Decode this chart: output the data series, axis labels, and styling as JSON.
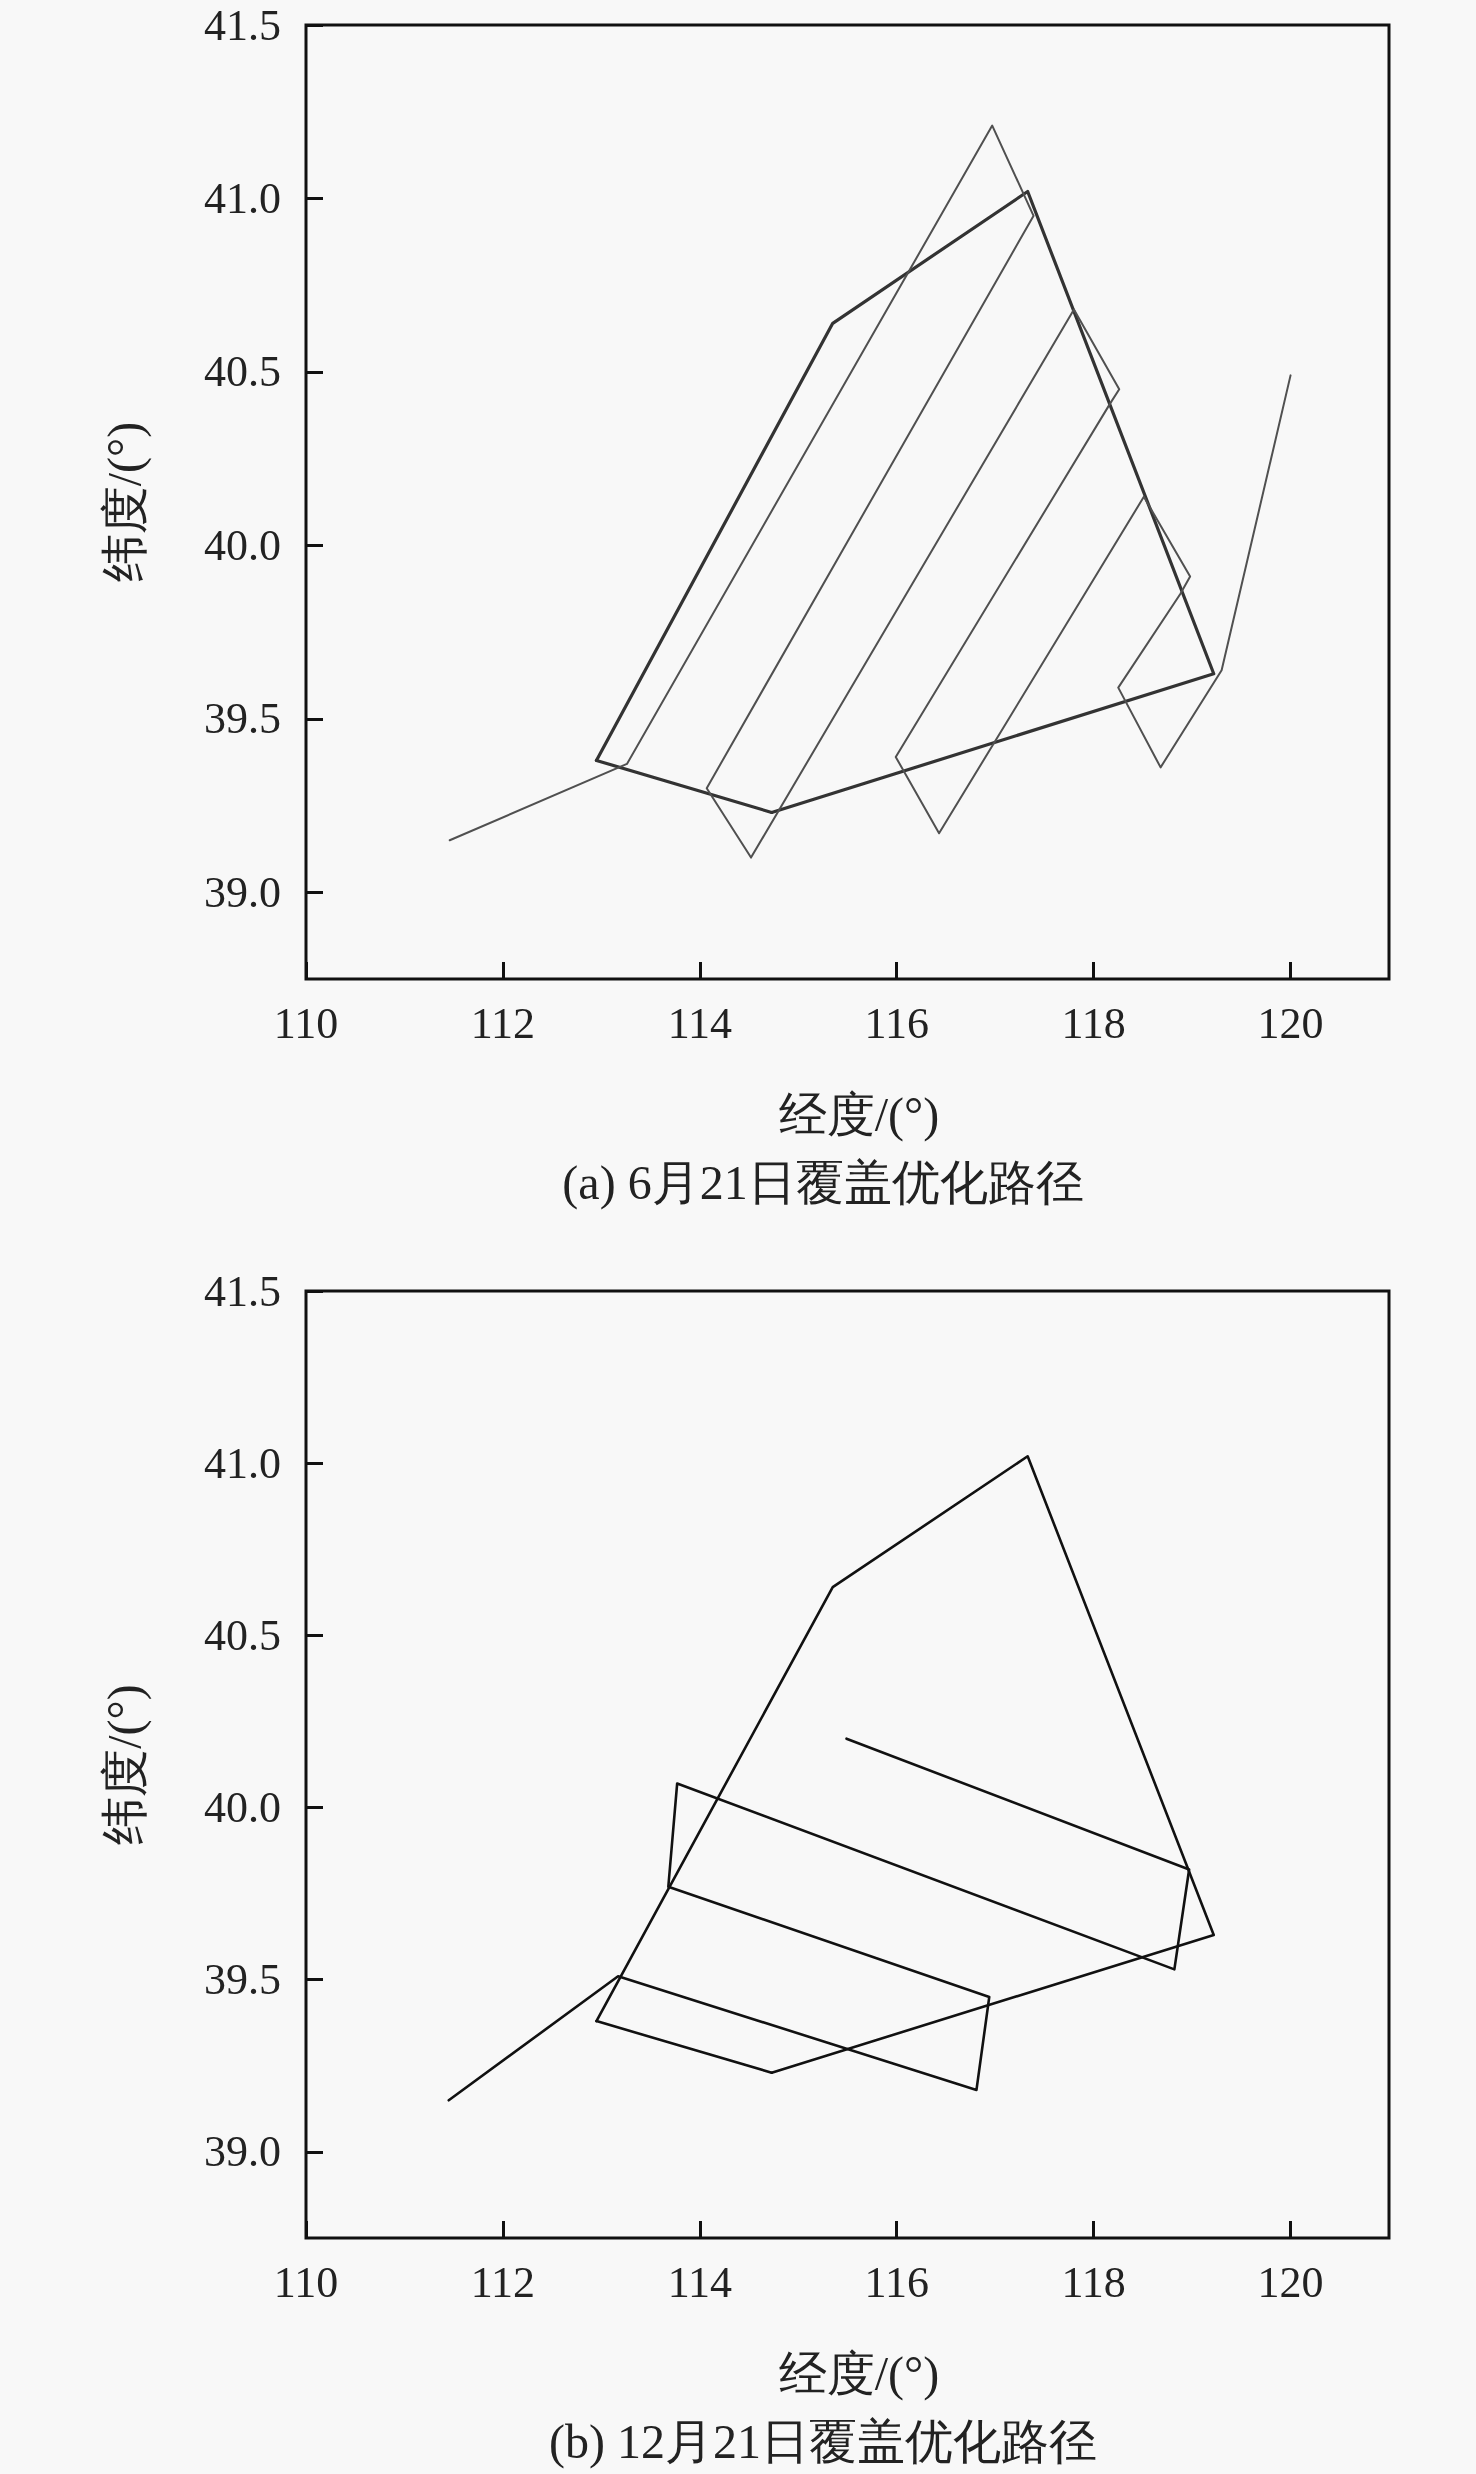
{
  "chart_data": [
    {
      "type": "line",
      "title": "(a) 6月21日覆盖优化路径",
      "xlabel": "经度/(°)",
      "ylabel": "纬度/(°)",
      "xlim": [
        110,
        121
      ],
      "xticks": [
        110,
        112,
        114,
        116,
        118,
        120
      ],
      "ylim": [
        38.75,
        41.5
      ],
      "yticks": [
        {
          "value": 39,
          "label": "39.0"
        },
        39.5,
        {
          "value": 40,
          "label": "40.0"
        },
        40.5,
        {
          "value": 41,
          "label": "41.0"
        },
        41.5
      ],
      "marker": "none",
      "series": [
        {
          "color": "#333333",
          "x": [
            112.95,
            115.35,
            117.33,
            119.22,
            114.73
          ],
          "values": [
            39.38,
            40.64,
            41.02,
            39.63,
            39.23
          ]
        },
        {
          "color": "#333333",
          "x": [
            114.73,
            112.95
          ],
          "values": [
            39.23,
            39.38
          ]
        },
        {
          "color": "#505050",
          "x": [
            111.46,
            113.26,
            116.97,
            117.39,
            114.07,
            114.52,
            117.8,
            118.26,
            118.17,
            115.99,
            116.43,
            118.51,
            118.98,
            118.88,
            118.25,
            118.68,
            119.3,
            120.0
          ],
          "values": [
            39.15,
            39.37,
            41.21,
            40.95,
            39.3,
            39.1,
            40.68,
            40.45,
            40.41,
            39.39,
            39.17,
            40.14,
            39.91,
            39.86,
            39.59,
            39.36,
            39.64,
            40.49
          ]
        }
      ]
    },
    {
      "type": "line",
      "title": "(b) 12月21日覆盖优化路径",
      "xlabel": "经度/(°)",
      "ylabel": "纬度/(°)",
      "xlim": [
        110,
        121
      ],
      "xticks": [
        110,
        112,
        114,
        116,
        118,
        120
      ],
      "ylim": [
        38.75,
        41.5
      ],
      "yticks": [
        {
          "value": 39,
          "label": "39.0"
        },
        39.5,
        {
          "value": 40,
          "label": "40.0"
        },
        40.5,
        {
          "value": 41,
          "label": "41.0"
        },
        41.5
      ],
      "marker": "none",
      "series": [
        {
          "color": "#111111",
          "x": [
            112.95,
            115.35,
            117.33,
            119.22,
            114.73
          ],
          "values": [
            39.38,
            40.64,
            41.02,
            39.63,
            39.23
          ]
        },
        {
          "color": "#111111",
          "x": [
            114.73,
            112.95
          ],
          "values": [
            39.23,
            39.38
          ]
        },
        {
          "color": "#111111",
          "x": [
            111.45,
            113.17,
            116.81,
            116.94,
            113.68,
            113.77,
            118.82,
            118.97,
            115.49
          ],
          "values": [
            39.15,
            39.51,
            39.18,
            39.45,
            39.77,
            40.07,
            39.53,
            39.82,
            40.2
          ]
        }
      ]
    }
  ]
}
